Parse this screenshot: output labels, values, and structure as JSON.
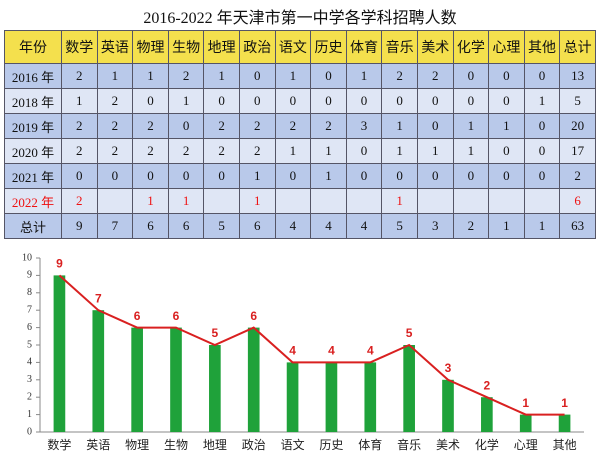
{
  "title": "2016-2022 年天津市第一中学各学科招聘人数",
  "table": {
    "header": [
      "年份",
      "数学",
      "英语",
      "物理",
      "生物",
      "地理",
      "政治",
      "语文",
      "历史",
      "体育",
      "音乐",
      "美术",
      "化学",
      "心理",
      "其他",
      "总计"
    ],
    "rows": [
      [
        "2016 年",
        2,
        1,
        1,
        2,
        1,
        0,
        1,
        0,
        1,
        2,
        2,
        0,
        0,
        0,
        13
      ],
      [
        "2018 年",
        1,
        2,
        0,
        1,
        0,
        0,
        0,
        0,
        0,
        0,
        0,
        0,
        0,
        1,
        5
      ],
      [
        "2019 年",
        2,
        2,
        2,
        0,
        2,
        2,
        2,
        2,
        3,
        1,
        0,
        1,
        1,
        0,
        20
      ],
      [
        "2020 年",
        2,
        2,
        2,
        2,
        2,
        2,
        1,
        1,
        0,
        1,
        1,
        1,
        0,
        0,
        17
      ],
      [
        "2021 年",
        0,
        0,
        0,
        0,
        0,
        1,
        0,
        1,
        0,
        0,
        0,
        0,
        0,
        0,
        2
      ],
      [
        "2022 年",
        2,
        null,
        1,
        1,
        null,
        1,
        null,
        null,
        null,
        1,
        null,
        null,
        null,
        null,
        6
      ],
      [
        "总计",
        9,
        7,
        6,
        6,
        5,
        6,
        4,
        4,
        4,
        5,
        3,
        2,
        1,
        1,
        63
      ]
    ],
    "highlight_row": 5
  },
  "chart_data": {
    "type": "bar",
    "categories": [
      "数学",
      "英语",
      "物理",
      "生物",
      "地理",
      "政治",
      "语文",
      "历史",
      "体育",
      "音乐",
      "美术",
      "化学",
      "心理",
      "其他"
    ],
    "values": [
      9,
      7,
      6,
      6,
      5,
      6,
      4,
      4,
      4,
      5,
      3,
      2,
      1,
      1
    ],
    "color": "#1fa23a",
    "line_color": "#d92020",
    "ylim": [
      0,
      10
    ],
    "yticks": [
      0,
      1,
      2,
      3,
      4,
      5,
      6,
      7,
      8,
      9,
      10
    ]
  }
}
